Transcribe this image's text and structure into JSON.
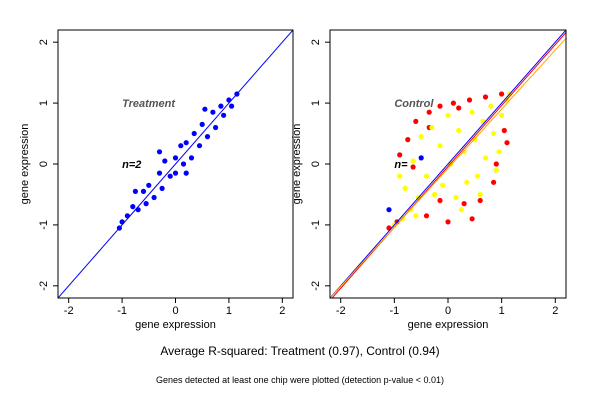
{
  "chart_data": [
    {
      "type": "scatter",
      "title": "",
      "panel_label": "Treatment",
      "n_label": "n=2",
      "xlabel": "gene expression",
      "ylabel": "gene expression",
      "xlim": [
        -2.2,
        2.2
      ],
      "ylim": [
        -2.2,
        2.2
      ],
      "xticks": [
        -2,
        -1,
        0,
        1,
        2
      ],
      "yticks": [
        -2,
        -1,
        0,
        1,
        2
      ],
      "grid": false,
      "reference_lines": [
        {
          "color": "#0000ff",
          "slope": 1.0,
          "intercept": 0.0
        }
      ],
      "series": [
        {
          "color": "#0000ff",
          "values": [
            [
              -1.05,
              -1.05
            ],
            [
              -1.0,
              -0.95
            ],
            [
              -0.9,
              -0.85
            ],
            [
              -0.8,
              -0.7
            ],
            [
              -0.7,
              -0.75
            ],
            [
              -0.6,
              -0.45
            ],
            [
              -0.55,
              -0.65
            ],
            [
              -0.5,
              -0.35
            ],
            [
              -0.4,
              -0.55
            ],
            [
              -0.3,
              -0.15
            ],
            [
              -0.25,
              -0.4
            ],
            [
              -0.2,
              0.05
            ],
            [
              -0.1,
              -0.2
            ],
            [
              0.0,
              0.1
            ],
            [
              0.0,
              -0.15
            ],
            [
              0.1,
              0.3
            ],
            [
              0.15,
              0.0
            ],
            [
              0.2,
              0.35
            ],
            [
              0.3,
              0.1
            ],
            [
              0.35,
              0.5
            ],
            [
              0.45,
              0.3
            ],
            [
              0.5,
              0.65
            ],
            [
              0.6,
              0.45
            ],
            [
              0.7,
              0.85
            ],
            [
              0.75,
              0.6
            ],
            [
              0.85,
              0.95
            ],
            [
              0.9,
              0.8
            ],
            [
              1.0,
              1.05
            ],
            [
              1.05,
              0.95
            ],
            [
              1.15,
              1.15
            ],
            [
              -0.75,
              -0.45
            ],
            [
              -0.3,
              0.2
            ],
            [
              0.2,
              -0.15
            ],
            [
              0.55,
              0.9
            ]
          ]
        }
      ]
    },
    {
      "type": "scatter",
      "title": "",
      "panel_label": "Control",
      "n_label": "n=",
      "xlabel": "gene expression",
      "ylabel": "gene expression",
      "xlim": [
        -2.2,
        2.2
      ],
      "ylim": [
        -2.2,
        2.2
      ],
      "xticks": [
        -2,
        -1,
        0,
        1,
        2
      ],
      "yticks": [
        -2,
        -1,
        0,
        1,
        2
      ],
      "grid": false,
      "reference_lines": [
        {
          "color": "#0000ff",
          "slope": 1.0,
          "intercept": 0.0
        },
        {
          "color": "#ff0000",
          "slope": 1.0,
          "intercept": -0.04
        },
        {
          "color": "#ffa500",
          "slope": 0.97,
          "intercept": -0.07
        }
      ],
      "series": [
        {
          "color": "#0000ff",
          "values": [
            [
              -1.1,
              -0.75
            ],
            [
              -0.5,
              0.1
            ]
          ]
        },
        {
          "color": "#ff0000",
          "values": [
            [
              -0.75,
              0.4
            ],
            [
              -0.6,
              0.7
            ],
            [
              -0.35,
              0.85
            ],
            [
              -0.15,
              0.95
            ],
            [
              0.1,
              1.0
            ],
            [
              0.4,
              1.05
            ],
            [
              0.7,
              1.1
            ],
            [
              1.0,
              1.15
            ],
            [
              -0.9,
              0.15
            ],
            [
              -0.4,
              -0.85
            ],
            [
              0.0,
              -0.95
            ],
            [
              0.3,
              -0.65
            ],
            [
              0.6,
              -0.6
            ],
            [
              0.85,
              -0.3
            ],
            [
              1.1,
              0.35
            ],
            [
              1.05,
              0.55
            ],
            [
              -1.1,
              -1.05
            ],
            [
              -0.95,
              -0.95
            ],
            [
              0.45,
              -0.9
            ],
            [
              -0.15,
              -0.6
            ],
            [
              0.9,
              0.0
            ],
            [
              -0.65,
              -0.05
            ],
            [
              -0.35,
              0.6
            ],
            [
              0.2,
              0.92
            ]
          ]
        },
        {
          "color": "#ffff00",
          "values": [
            [
              -1.0,
              -1.0
            ],
            [
              -0.85,
              -0.9
            ],
            [
              -0.8,
              -0.4
            ],
            [
              -0.7,
              -0.75
            ],
            [
              -0.65,
              0.05
            ],
            [
              -0.55,
              -0.55
            ],
            [
              -0.5,
              0.45
            ],
            [
              -0.4,
              -0.2
            ],
            [
              -0.3,
              0.6
            ],
            [
              -0.25,
              -0.5
            ],
            [
              -0.15,
              0.3
            ],
            [
              -0.1,
              -0.35
            ],
            [
              0.0,
              0.8
            ],
            [
              0.05,
              0.0
            ],
            [
              0.15,
              -0.55
            ],
            [
              0.2,
              0.55
            ],
            [
              0.3,
              0.2
            ],
            [
              0.35,
              -0.3
            ],
            [
              0.45,
              0.85
            ],
            [
              0.5,
              0.4
            ],
            [
              0.55,
              -0.2
            ],
            [
              0.65,
              0.7
            ],
            [
              0.7,
              0.1
            ],
            [
              0.8,
              0.95
            ],
            [
              0.85,
              0.5
            ],
            [
              0.95,
              0.2
            ],
            [
              1.0,
              0.8
            ],
            [
              1.1,
              1.05
            ],
            [
              1.15,
              1.15
            ],
            [
              -0.6,
              -0.85
            ],
            [
              0.25,
              -0.75
            ],
            [
              0.6,
              -0.5
            ],
            [
              0.9,
              -0.1
            ],
            [
              -0.9,
              -0.2
            ]
          ]
        }
      ]
    }
  ],
  "captions": {
    "main": "Average R-squared: Treatment (0.97), Control (0.94)",
    "note": "Genes detected at least one chip were plotted (detection p-value < 0.01)"
  }
}
